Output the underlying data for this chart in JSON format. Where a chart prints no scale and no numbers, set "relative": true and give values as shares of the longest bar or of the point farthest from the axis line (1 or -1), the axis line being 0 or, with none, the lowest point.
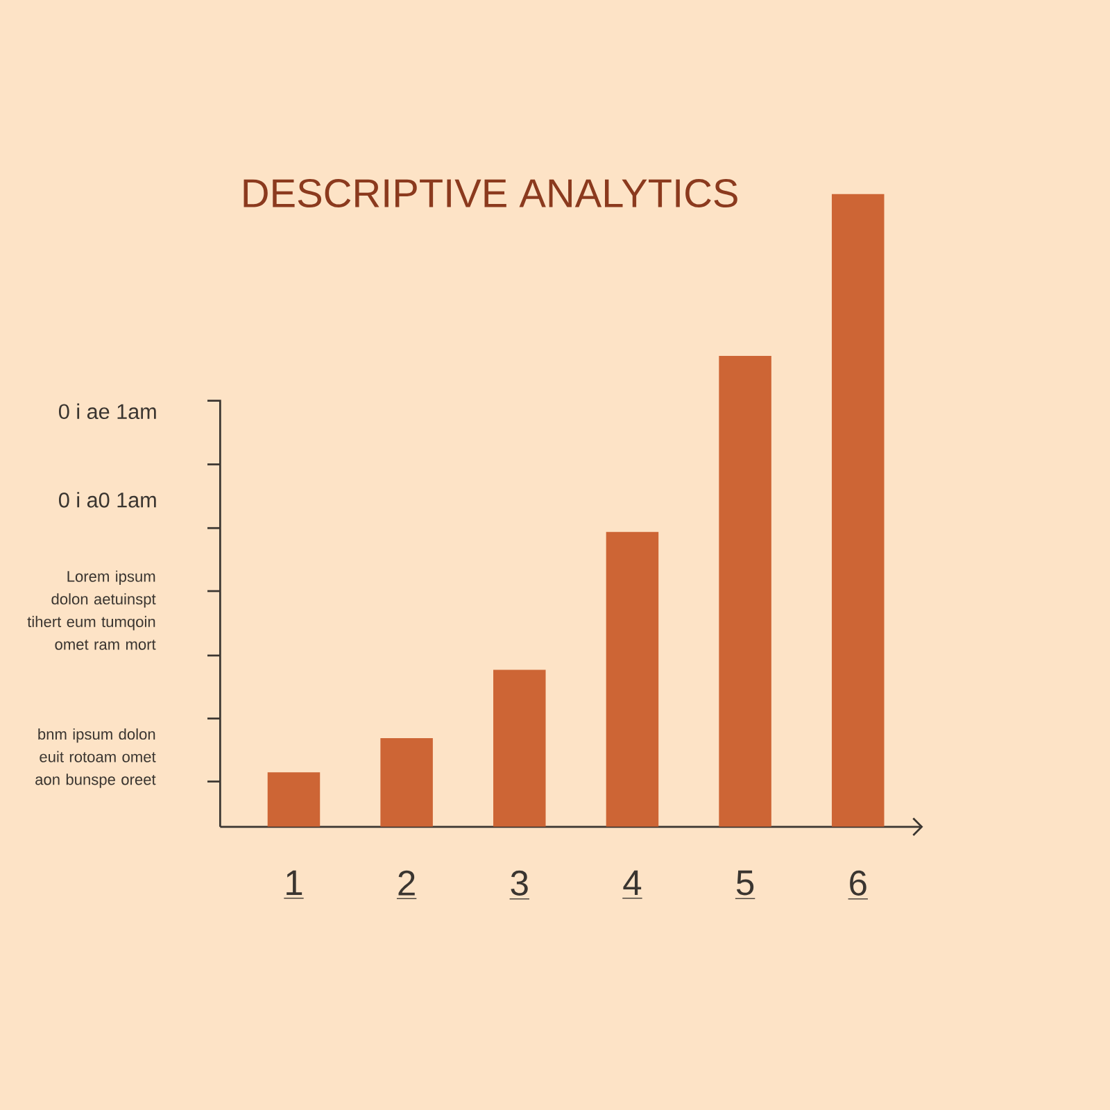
{
  "chart_data": {
    "type": "bar",
    "title": "DESCRIPTIVE ANALYTICS",
    "categories": [
      "1",
      "2",
      "3",
      "4",
      "5",
      "6"
    ],
    "values": [
      0.086,
      0.14,
      0.248,
      0.466,
      0.744,
      1
    ],
    "color": "#cd6535",
    "relative": true,
    "annotations": [
      "0 i ae 1am",
      "0 i a0 1am",
      "Lorem ipsum dolon aetuinspt tihert eum tumqoin omet ram mort",
      "bnm ipsum dolon euit rotoam omet aon bunspe oreet"
    ]
  }
}
